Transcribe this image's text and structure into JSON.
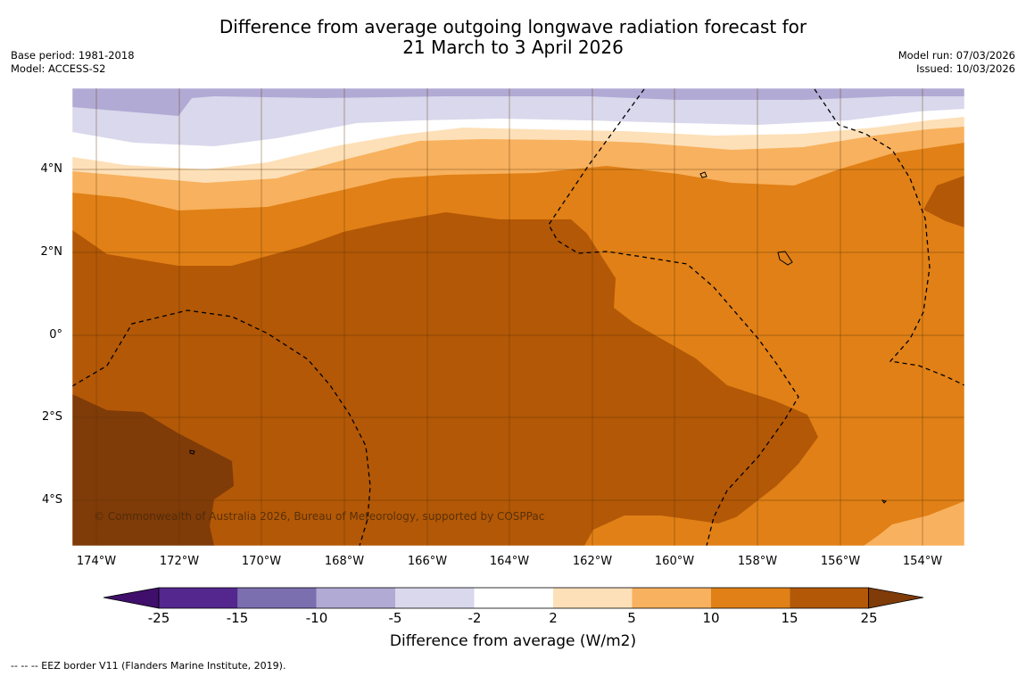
{
  "title": {
    "line1": "Difference from average outgoing longwave radiation forecast for",
    "line2": "21 March to 3 April 2026"
  },
  "meta_left": {
    "base_period": "Base period: 1981-2018",
    "model": "Model: ACCESS-S2"
  },
  "meta_right": {
    "model_run": "Model run: 07/03/2026",
    "issued": "Issued: 10/03/2026"
  },
  "lat_ticks": [
    "4°N",
    "2°N",
    "0°",
    "2°S",
    "4°S"
  ],
  "lon_ticks": [
    "174°W",
    "172°W",
    "170°W",
    "168°W",
    "166°W",
    "164°W",
    "162°W",
    "160°W",
    "158°W",
    "156°W",
    "154°W"
  ],
  "colorbar": {
    "labels": [
      "-25",
      "-15",
      "-10",
      "-5",
      "-2",
      "2",
      "5",
      "10",
      "15",
      "25"
    ],
    "colors": [
      "#3f0f6b",
      "#54278f",
      "#7b6fb0",
      "#b1aad4",
      "#d9d8ec",
      "#ffffff",
      "#fde0b8",
      "#f8b15e",
      "#e08016",
      "#b35806",
      "#7f3b08"
    ],
    "title": "Difference from average (W/m2)"
  },
  "credit": "© Commonwealth of Australia 2026, Bureau of Meteorology, supported by COSPPac",
  "legend_note": "-- -- -- EEZ border V11 (Flanders Marine Institute, 2019)."
}
